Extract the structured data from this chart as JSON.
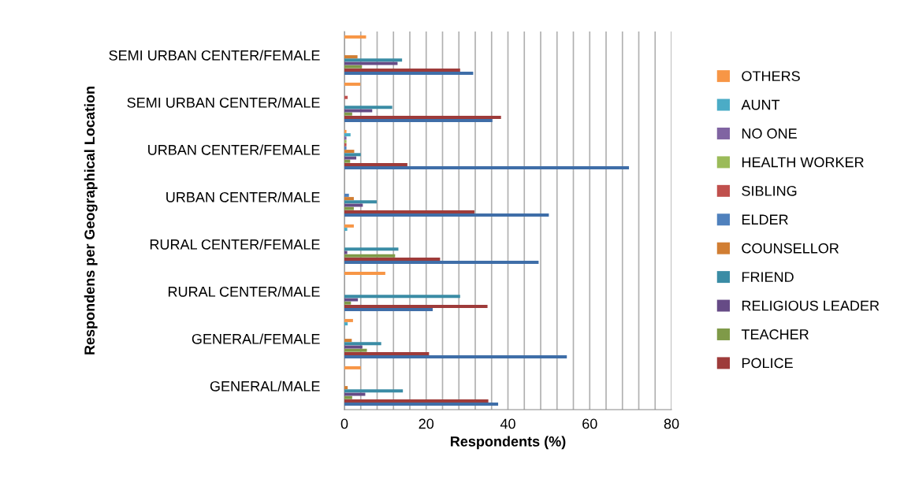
{
  "chart_data": {
    "type": "bar",
    "orientation": "horizontal",
    "xlabel": "Respondents (%)",
    "ylabel": "Respondens per Geographical Location",
    "categories": [
      "SEMI URBAN CENTER/FEMALE",
      "SEMI URBAN CENTER/MALE",
      "URBAN CENTER/FEMALE",
      "URBAN CENTER/MALE",
      "RURAL CENTER/FEMALE",
      "RURAL CENTER/MALE",
      "GENERAL/FEMALE",
      "GENERAL/MALE"
    ],
    "series": [
      {
        "color": "#3f6ea8",
        "values": [
          31.5,
          36.2,
          69.6,
          50.0,
          47.5,
          21.6,
          54.4,
          37.6
        ]
      },
      {
        "name": "POLICE",
        "color": "#9e3b3a",
        "values": [
          28.3,
          38.3,
          15.4,
          31.8,
          23.4,
          35.0,
          20.7,
          35.2
        ]
      },
      {
        "name": "TEACHER",
        "color": "#7f9a48",
        "values": [
          4.3,
          1.9,
          1.4,
          2.3,
          12.4,
          1.6,
          5.5,
          1.9
        ]
      },
      {
        "name": "RELIGIOUS LEADER",
        "color": "#664b86",
        "values": [
          13.0,
          6.8,
          2.9,
          4.5,
          0.7,
          3.3,
          4.4,
          5.1
        ]
      },
      {
        "name": "FRIEND",
        "color": "#3a8ca5",
        "values": [
          14.1,
          11.7,
          4.0,
          7.9,
          13.2,
          28.3,
          9.0,
          14.3
        ]
      },
      {
        "name": "COUNSELLOR",
        "color": "#d17e33",
        "values": [
          3.2,
          0,
          2.4,
          2.3,
          0,
          0,
          1.8,
          0.8
        ]
      },
      {
        "name": "ELDER",
        "color": "#4f81bd",
        "values": [
          0,
          0,
          0.5,
          1.1,
          0,
          0,
          0,
          null
        ]
      },
      {
        "name": "SIBLING",
        "color": "#c0504d",
        "values": [
          0,
          0.8,
          0.5,
          0,
          0,
          0,
          0,
          null
        ]
      },
      {
        "name": "HEALTH WORKER",
        "color": "#9bbb59",
        "values": [
          0,
          0,
          0.5,
          0,
          0,
          0,
          0,
          0
        ]
      },
      {
        "name": "NO ONE",
        "color": "#8064a2",
        "values": [
          0,
          0,
          0.5,
          0,
          0,
          0,
          0,
          0
        ]
      },
      {
        "name": "AUNT",
        "color": "#4bacc6",
        "values": [
          0,
          0,
          1.5,
          0,
          0.7,
          0,
          0.8,
          0
        ]
      },
      {
        "name": "OTHERS",
        "color": "#f79646",
        "values": [
          5.3,
          3.9,
          0.5,
          0,
          2.3,
          10.0,
          2.1,
          4.0
        ]
      }
    ],
    "xlim": [
      0,
      80
    ],
    "xticks": [
      0,
      {
        "value": 4,
        "label": null
      },
      {
        "value": 8,
        "label": null
      },
      {
        "value": 12,
        "label": null
      },
      {
        "value": 16,
        "label": null
      },
      20,
      {
        "value": 24,
        "label": null
      },
      {
        "value": 28,
        "label": null
      },
      {
        "value": 32,
        "label": null
      },
      {
        "value": 36,
        "label": null
      },
      40,
      {
        "value": 44,
        "label": null
      },
      {
        "value": 48,
        "label": null
      },
      {
        "value": 52,
        "label": null
      },
      {
        "value": 56,
        "label": null
      },
      60,
      {
        "value": 64,
        "label": null
      },
      {
        "value": 68,
        "label": null
      },
      {
        "value": 72,
        "label": null
      },
      {
        "value": 76,
        "label": null
      },
      80
    ],
    "grid": "x",
    "legend": "right"
  }
}
